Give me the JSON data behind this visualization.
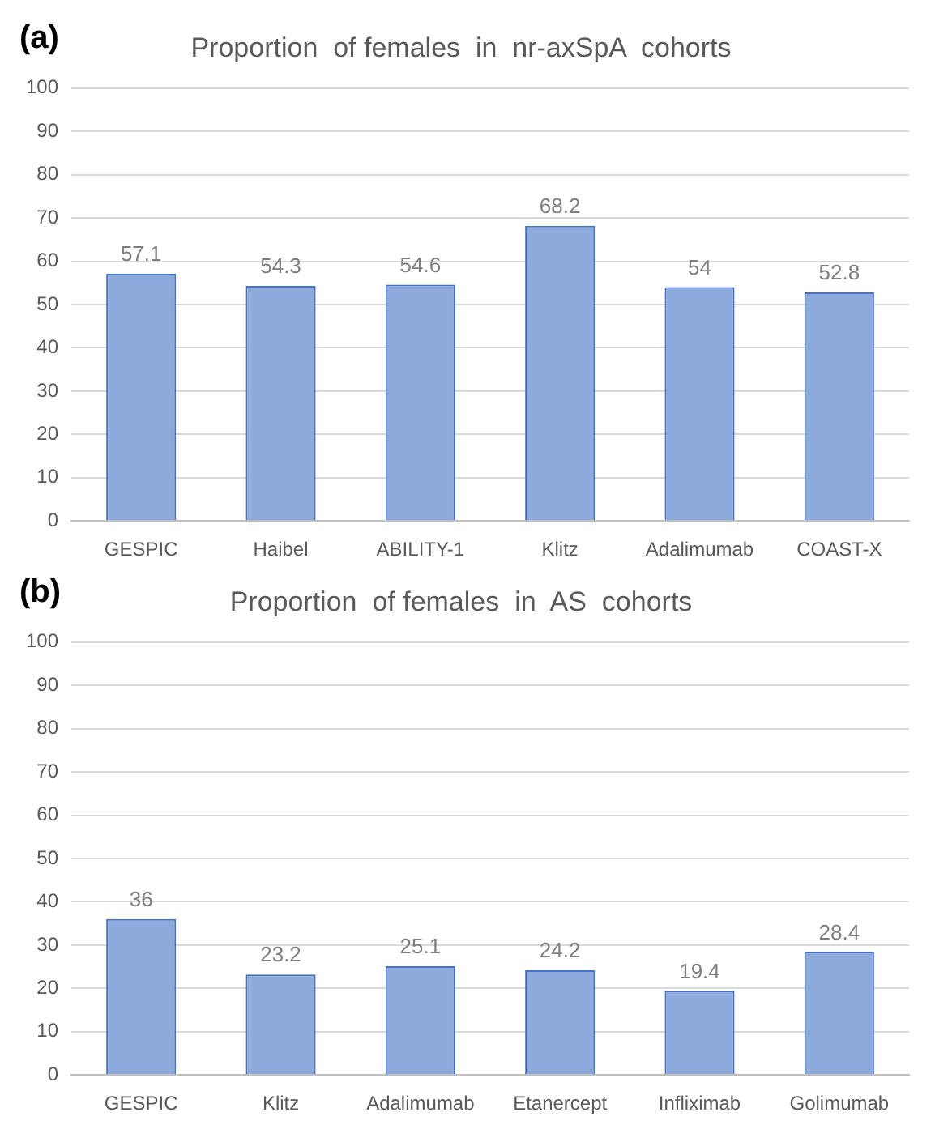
{
  "chart_data": [
    {
      "type": "bar",
      "title": "Proportion  of females  in  nr-axSpA  cohorts",
      "annotations": [
        "(a)"
      ],
      "categories": [
        "GESPIC",
        "Haibel",
        "ABILITY-1",
        "Klitz",
        "Adalimumab",
        "COAST-X"
      ],
      "values": [
        57.1,
        54.3,
        54.6,
        68.2,
        54,
        52.8
      ],
      "color": "#8ea9db",
      "ylim": [
        0,
        100
      ],
      "yticks": [
        0,
        10,
        20,
        30,
        40,
        50,
        60,
        70,
        80,
        90,
        100
      ],
      "grid": "y",
      "data_labels": true
    },
    {
      "type": "bar",
      "title": "Proportion  of females  in  AS  cohorts",
      "annotations": [
        "(b)"
      ],
      "categories": [
        "GESPIC",
        "Klitz",
        "Adalimumab",
        "Etanercept",
        "Infliximab",
        "Golimumab"
      ],
      "values": [
        36,
        23.2,
        25.1,
        24.2,
        19.4,
        28.4
      ],
      "color": "#8ea9db",
      "ylim": [
        0,
        100
      ],
      "yticks": [
        0,
        10,
        20,
        30,
        40,
        50,
        60,
        70,
        80,
        90,
        100
      ],
      "grid": "y",
      "data_labels": true
    }
  ]
}
